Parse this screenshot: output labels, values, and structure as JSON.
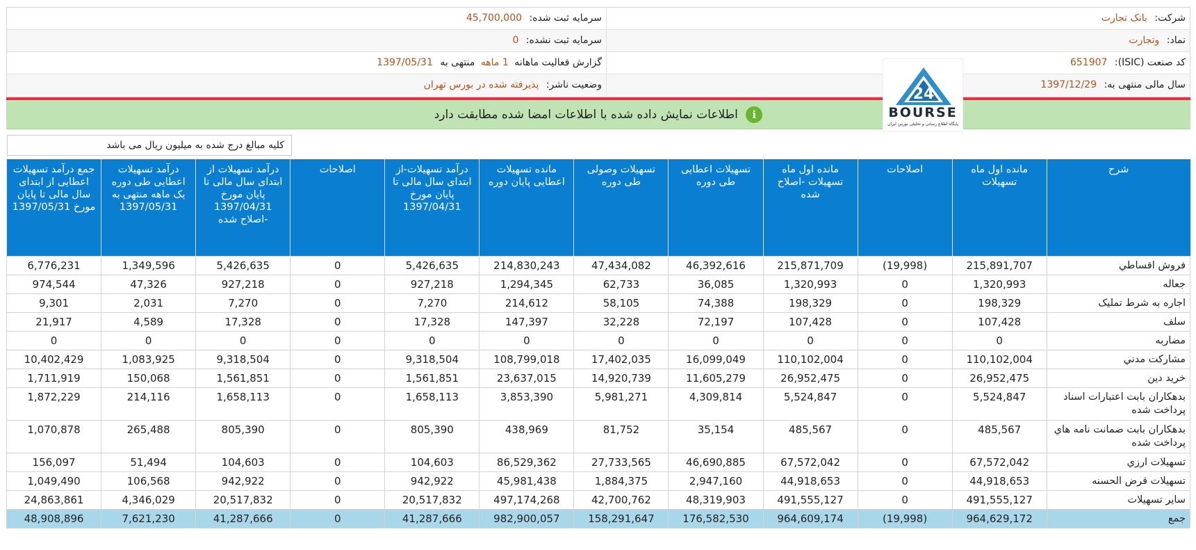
{
  "header": {
    "rows": [
      {
        "right_label": "شرکت:",
        "right_value": "بانک تجارت",
        "left_label": "سرمایه ثبت شده:",
        "left_value": "45,700,000"
      },
      {
        "right_label": "نماد:",
        "right_value": "وتجارت",
        "left_label": "سرمایه ثبت نشده:",
        "left_value": "0"
      },
      {
        "right_label": "کد صنعت (ISIC):",
        "right_value": "651907",
        "left_label": "گزارش فعالیت ماهانه",
        "left_value_mid": "1 ماهه",
        "left_label_mid": "منتهی به",
        "left_value": "1397/05/31"
      },
      {
        "right_label": "سال مالی منتهی به:",
        "right_value": "1397/12/29",
        "left_label": "وضعیت ناشر:",
        "left_value": "پذیرفته شده در بورس تهران"
      }
    ]
  },
  "logo": {
    "word": "BOURSE",
    "subtitle": "پایگاه اطلاع رسانی و تحلیلی بورس ایران"
  },
  "notice": {
    "text": "اطلاعات نمایش داده شده با اطلاعات امضا شده مطابقت دارد",
    "icon": "info-icon"
  },
  "unit_note": "کلیه مبالغ درج شده به میلیون ریال می باشد",
  "table": {
    "columns": [
      "شرح",
      "مانده اول ماه تسهیلات",
      "اصلاحات",
      "مانده اول ماه تسهیلات -اصلاح شده",
      "تسهیلات اعطایی طی دوره",
      "تسهیلات وصولی طی دوره",
      "مانده تسهیلات اعطایی پایان دوره",
      "درآمد تسهیلات-از ابتدای سال مالی تا پایان مورخ 1397/04/31",
      "اصلاحات",
      "درآمد تسهیلات از ابتدای سال مالی تا پایان مورخ 1397/04/31 -اصلاح شده",
      "درآمد تسهیلات اعطایی طی دوره یک ماهه منتهی به 1397/05/31",
      "جمع درآمد تسهیلات اعطایی از ابتدای سال مالی تا پایان مورخ 1397/05/31"
    ],
    "rows": [
      [
        "فروش اقساطي",
        "215,891,707",
        "(19,998)",
        "215,871,709",
        "46,392,616",
        "47,434,082",
        "214,830,243",
        "5,426,635",
        "0",
        "5,426,635",
        "1,349,596",
        "6,776,231"
      ],
      [
        "جعاله",
        "1,320,993",
        "0",
        "1,320,993",
        "36,085",
        "62,733",
        "1,294,345",
        "927,218",
        "0",
        "927,218",
        "47,326",
        "974,544"
      ],
      [
        "اجاره به شرط تمليک",
        "198,329",
        "0",
        "198,329",
        "74,388",
        "58,105",
        "214,612",
        "7,270",
        "0",
        "7,270",
        "2,031",
        "9,301"
      ],
      [
        "سلف",
        "107,428",
        "0",
        "107,428",
        "72,197",
        "32,228",
        "147,397",
        "17,328",
        "0",
        "17,328",
        "4,589",
        "21,917"
      ],
      [
        "مضاربه",
        "0",
        "0",
        "0",
        "0",
        "0",
        "0",
        "0",
        "0",
        "0",
        "0",
        "0"
      ],
      [
        "مشارکت مدني",
        "110,102,004",
        "0",
        "110,102,004",
        "16,099,049",
        "17,402,035",
        "108,799,018",
        "9,318,504",
        "0",
        "9,318,504",
        "1,083,925",
        "10,402,429"
      ],
      [
        "خريد دين",
        "26,952,475",
        "0",
        "26,952,475",
        "11,605,279",
        "14,920,739",
        "23,637,015",
        "1,561,851",
        "0",
        "1,561,851",
        "150,068",
        "1,711,919"
      ],
      [
        "بدهکاران بابت اعتبارات اسناد پرداخت شده",
        "5,524,847",
        "0",
        "5,524,847",
        "4,309,814",
        "5,981,271",
        "3,853,390",
        "1,658,113",
        "0",
        "1,658,113",
        "214,116",
        "1,872,229"
      ],
      [
        "بدهکاران بابت ضمانت نامه هاي پرداخت شده",
        "485,567",
        "0",
        "485,567",
        "35,154",
        "81,752",
        "438,969",
        "805,390",
        "0",
        "805,390",
        "265,488",
        "1,070,878"
      ],
      [
        "تسهيلات ارزي",
        "67,572,042",
        "0",
        "67,572,042",
        "46,690,885",
        "27,733,565",
        "86,529,362",
        "104,603",
        "0",
        "104,603",
        "51,494",
        "156,097"
      ],
      [
        "تسهيلات قرض الحسنه",
        "44,918,653",
        "0",
        "44,918,653",
        "2,947,160",
        "1,884,375",
        "45,981,438",
        "942,922",
        "0",
        "942,922",
        "106,568",
        "1,049,490"
      ],
      [
        "ساير تسهيلات",
        "491,555,127",
        "0",
        "491,555,127",
        "48,319,903",
        "42,700,762",
        "497,174,268",
        "20,517,832",
        "0",
        "20,517,832",
        "4,346,029",
        "24,863,861"
      ]
    ],
    "total": [
      "جمع",
      "964,629,172",
      "(19,998)",
      "964,609,174",
      "176,582,530",
      "158,291,647",
      "982,900,057",
      "41,287,666",
      "0",
      "41,287,666",
      "7,621,230",
      "48,908,896"
    ]
  },
  "colors": {
    "header_bg": "#0a7fd1",
    "total_bg": "#a9d7ea",
    "notice_bg": "#bfe3b3",
    "accent_value": "#b5531a",
    "red_rule": "#e2333d"
  }
}
